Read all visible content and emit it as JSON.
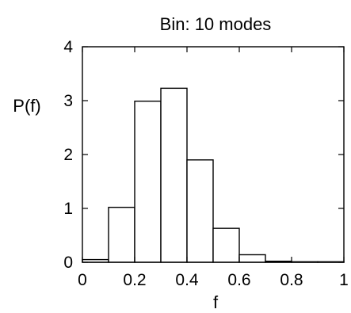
{
  "chart_data": {
    "type": "bar",
    "title": "Bin: 10 modes",
    "xlabel": "f",
    "ylabel": "P(f)",
    "xlim": [
      0,
      1
    ],
    "ylim": [
      0,
      4
    ],
    "xticks": [
      "0",
      "0.2",
      "0.4",
      "0.6",
      "0.8",
      "1"
    ],
    "yticks": [
      "0",
      "1",
      "2",
      "3",
      "4"
    ],
    "bin_edges": [
      0,
      0.1,
      0.2,
      0.3,
      0.4,
      0.5,
      0.6,
      0.7,
      0.8,
      0.9,
      1.0
    ],
    "values": [
      0.05,
      1.02,
      2.99,
      3.23,
      1.9,
      0.63,
      0.14,
      0.02,
      0.01,
      0.01
    ],
    "grid": false,
    "legend": "none"
  }
}
